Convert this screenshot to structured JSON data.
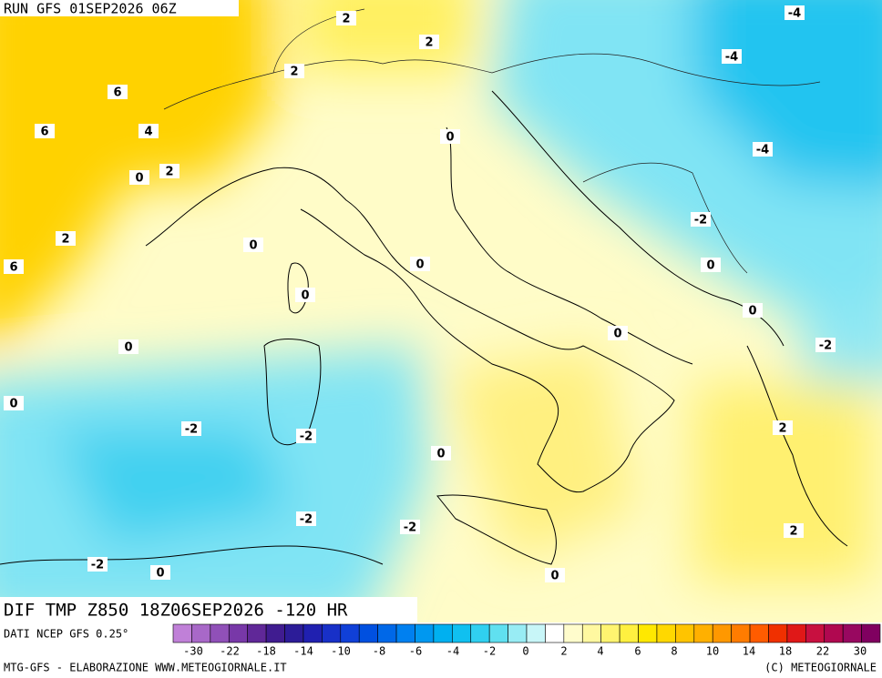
{
  "header": {
    "run": "RUN GFS 01SEP2026 06Z"
  },
  "map": {
    "contour_labels": [
      2,
      -4,
      2,
      -4,
      2,
      6,
      6,
      4,
      0,
      -4,
      0,
      2,
      -2,
      2,
      0,
      0,
      6,
      0,
      0,
      0,
      0,
      -2,
      0,
      0,
      2,
      -2,
      -2,
      0,
      -2,
      -2,
      2,
      -2,
      0,
      0
    ]
  },
  "footer": {
    "title": "DIF TMP Z850 18Z06SEP2026 -120 HR",
    "source": "DATI NCEP GFS 0.25°",
    "credit": "MTG-GFS - ELABORAZIONE WWW.METEOGIORNALE.IT",
    "copyright": "(C) METEOGIORNALE"
  },
  "colorbar": {
    "labels": [
      -30,
      -22,
      -18,
      -14,
      -10,
      -8,
      -6,
      -4,
      -2,
      0,
      2,
      4,
      6,
      8,
      10,
      14,
      18,
      22,
      30
    ],
    "colors": [
      "#c080d8",
      "#a868c8",
      "#9050b8",
      "#7838a8",
      "#602898",
      "#401c90",
      "#2c1c98",
      "#2020b0",
      "#1830c8",
      "#1040d8",
      "#0050e0",
      "#0068e8",
      "#0080f0",
      "#0098f0",
      "#00b0f0",
      "#10c0f0",
      "#30d0f0",
      "#60e0f0",
      "#98ecf4",
      "#c8f6f8",
      "#ffffff",
      "#fffccc",
      "#fff8a0",
      "#fff470",
      "#fff040",
      "#ffe800",
      "#ffd800",
      "#ffc400",
      "#ffb000",
      "#ff9800",
      "#ff7c00",
      "#ff5c00",
      "#f03000",
      "#e01818",
      "#c81040",
      "#b00850",
      "#980860",
      "#800060"
    ]
  }
}
